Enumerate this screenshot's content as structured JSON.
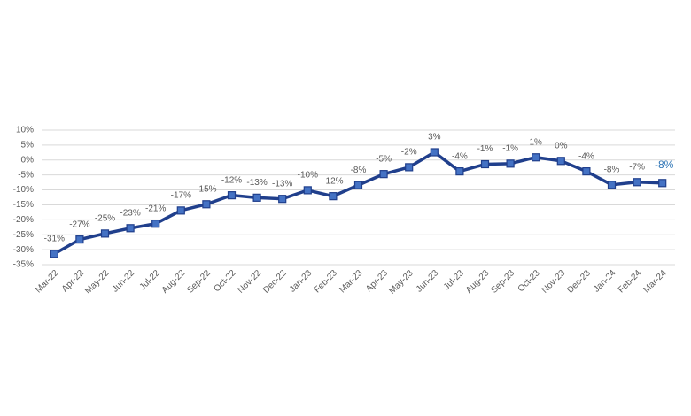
{
  "chart_data": {
    "type": "line",
    "categories": [
      "Mar-22",
      "Apr-22",
      "May-22",
      "Jun-22",
      "Jul-22",
      "Aug-22",
      "Sep-22",
      "Oct-22",
      "Nov-22",
      "Dec-22",
      "Jan-23",
      "Feb-23",
      "Mar-23",
      "Apr-23",
      "May-23",
      "Jun-23",
      "Jul-23",
      "Aug-23",
      "Sep-23",
      "Oct-23",
      "Nov-23",
      "Dec-23",
      "Jan-24",
      "Feb-24",
      "Mar-24"
    ],
    "series": [
      {
        "color": "#203f8c",
        "values": [
          -31.4,
          -26.6,
          -24.6,
          -22.8,
          -21.3,
          -16.9,
          -14.8,
          -11.8,
          -12.6,
          -13.0,
          -10.1,
          -12.1,
          -8.4,
          -4.7,
          -2.4,
          2.6,
          -3.8,
          -1.4,
          -1.2,
          0.9,
          -0.3,
          -3.8,
          -8.3,
          -7.4,
          -7.7
        ],
        "value_labels": [
          "-31%",
          "-27%",
          "-25%",
          "-23%",
          "-21%",
          "-17%",
          "-15%",
          "-12%",
          "-13%",
          "-13%",
          "-10%",
          "-12%",
          "-8%",
          "-5%",
          "-2%",
          "3%",
          "-4%",
          "-1%",
          "-1%",
          "1%",
          "0%",
          "-4%",
          "-8%",
          "-7%",
          "-8%"
        ]
      }
    ],
    "ylim": [
      -35,
      10
    ],
    "yticks": [
      {
        "value": 10,
        "label": "10%"
      },
      {
        "value": 5,
        "label": "5%"
      },
      {
        "value": 0,
        "label": "0%"
      },
      {
        "value": -5,
        "label": "-5%"
      },
      {
        "value": -10,
        "label": "-10%"
      },
      {
        "value": -15,
        "label": "-15%"
      },
      {
        "value": -20,
        "label": "-20%"
      },
      {
        "value": -25,
        "label": "-25%"
      },
      {
        "value": -30,
        "label": "-30%"
      },
      {
        "value": -35,
        "label": "-35%"
      }
    ],
    "grid": true
  }
}
